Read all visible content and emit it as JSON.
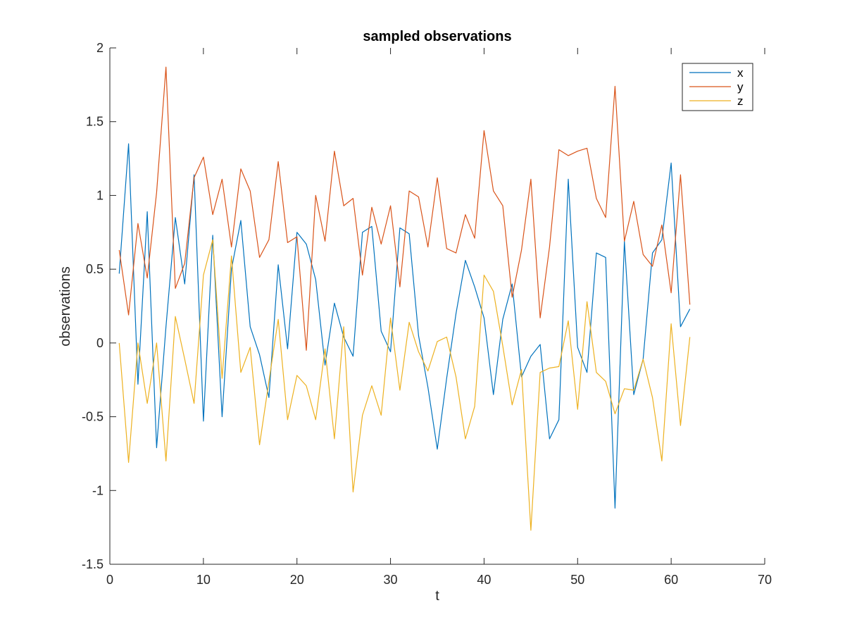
{
  "chart_data": {
    "type": "line",
    "title": "sampled observations",
    "xlabel": "t",
    "ylabel": "observations",
    "xlim": [
      0,
      70
    ],
    "ylim": [
      -1.5,
      2
    ],
    "xticks": [
      "0",
      "10",
      "20",
      "30",
      "40",
      "50",
      "60",
      "70"
    ],
    "yticks": [
      "-1.5",
      "-1",
      "-0.5",
      "0",
      "0.5",
      "1",
      "1.5",
      "2"
    ],
    "grid": false,
    "legend_position": "top-right",
    "x": [
      1,
      2,
      3,
      4,
      5,
      6,
      7,
      8,
      9,
      10,
      11,
      12,
      13,
      14,
      15,
      16,
      17,
      18,
      19,
      20,
      21,
      22,
      23,
      24,
      25,
      26,
      27,
      28,
      29,
      30,
      31,
      32,
      33,
      34,
      35,
      36,
      37,
      38,
      39,
      40,
      41,
      42,
      43,
      44,
      45,
      46,
      47,
      48,
      49,
      50,
      51,
      52,
      53,
      54,
      55,
      56,
      57,
      58,
      59,
      60,
      61,
      62
    ],
    "series": [
      {
        "name": "x",
        "color": "#0072BD",
        "values": [
          0.47,
          1.35,
          -0.28,
          0.89,
          -0.71,
          0.11,
          0.85,
          0.4,
          1.14,
          -0.53,
          0.73,
          -0.5,
          0.5,
          0.83,
          0.11,
          -0.08,
          -0.37,
          0.53,
          -0.04,
          0.75,
          0.67,
          0.43,
          -0.15,
          0.27,
          0.04,
          -0.09,
          0.75,
          0.79,
          0.08,
          -0.06,
          0.78,
          0.74,
          0.05,
          -0.3,
          -0.72,
          -0.24,
          0.2,
          0.56,
          0.38,
          0.17,
          -0.35,
          0.16,
          0.4,
          -0.23,
          -0.09,
          -0.01,
          -0.65,
          -0.52,
          1.11,
          -0.03,
          -0.2,
          0.61,
          0.58,
          -1.12,
          0.69,
          -0.35,
          -0.11,
          0.61,
          0.7,
          1.22,
          0.11,
          0.23
        ]
      },
      {
        "name": "y",
        "color": "#D95319",
        "values": [
          0.63,
          0.19,
          0.81,
          0.44,
          1.02,
          1.87,
          0.37,
          0.54,
          1.12,
          1.26,
          0.87,
          1.11,
          0.65,
          1.18,
          1.03,
          0.58,
          0.7,
          1.23,
          0.68,
          0.72,
          -0.05,
          1.0,
          0.69,
          1.3,
          0.93,
          0.98,
          0.46,
          0.92,
          0.67,
          0.93,
          0.38,
          1.03,
          0.99,
          0.65,
          1.12,
          0.64,
          0.61,
          0.87,
          0.71,
          1.44,
          1.03,
          0.93,
          0.31,
          0.63,
          1.11,
          0.17,
          0.65,
          1.31,
          1.27,
          1.3,
          1.32,
          0.98,
          0.85,
          1.74,
          0.69,
          0.96,
          0.6,
          0.52,
          0.8,
          0.34,
          1.14,
          0.26
        ]
      },
      {
        "name": "z",
        "color": "#EDB120",
        "values": [
          0.0,
          -0.81,
          0.0,
          -0.41,
          0.0,
          -0.8,
          0.18,
          -0.11,
          -0.41,
          0.46,
          0.7,
          -0.24,
          0.59,
          -0.2,
          -0.03,
          -0.69,
          -0.26,
          0.16,
          -0.52,
          -0.22,
          -0.29,
          -0.52,
          -0.04,
          -0.65,
          0.11,
          -1.01,
          -0.49,
          -0.29,
          -0.49,
          0.17,
          -0.32,
          0.14,
          -0.06,
          -0.19,
          0.01,
          0.04,
          -0.23,
          -0.65,
          -0.43,
          0.46,
          0.35,
          -0.02,
          -0.42,
          -0.18,
          -1.27,
          -0.2,
          -0.17,
          -0.16,
          0.15,
          -0.45,
          0.28,
          -0.2,
          -0.26,
          -0.48,
          -0.31,
          -0.32,
          -0.11,
          -0.37,
          -0.8,
          0.13,
          -0.56,
          0.04
        ]
      }
    ]
  }
}
